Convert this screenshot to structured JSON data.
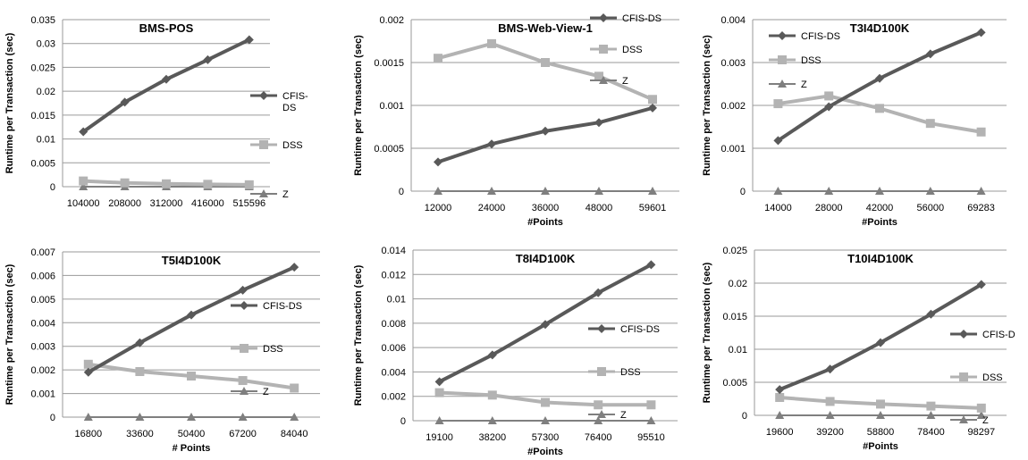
{
  "chart_data": [
    {
      "type": "line",
      "title": "BMS-POS",
      "xlabel": "",
      "ylabel": "Runtime per Transaction (sec)",
      "categories": [
        "104000",
        "208000",
        "312000",
        "416000",
        "515596"
      ],
      "ylim": [
        0,
        0.035
      ],
      "yticks": [
        "0",
        "0.005",
        "0.01",
        "0.015",
        "0.02",
        "0.025",
        "0.03",
        "0.035"
      ],
      "legend_position": "right",
      "series": [
        {
          "name": "CFIS-DS",
          "legend_lines": [
            "CFIS-",
            "DS"
          ],
          "values": [
            0.0115,
            0.0177,
            0.0225,
            0.0266,
            0.0308
          ],
          "color": "#595959",
          "marker": "diamond"
        },
        {
          "name": "DSS",
          "values": [
            0.0012,
            0.0008,
            0.0006,
            0.0005,
            0.0004
          ],
          "color": "#b3b3b3",
          "marker": "square"
        },
        {
          "name": "Z",
          "values": [
            0,
            0,
            0,
            0,
            0
          ],
          "color": "#7f7f7f",
          "marker": "triangle"
        }
      ]
    },
    {
      "type": "line",
      "title": "BMS-Web-View-1",
      "xlabel": "#Points",
      "ylabel": "Runtime per Transaction (sec)",
      "categories": [
        "12000",
        "24000",
        "36000",
        "48000",
        "59601"
      ],
      "ylim": [
        0,
        0.002
      ],
      "yticks": [
        "0",
        "0.0005",
        "0.001",
        "0.0015",
        "0.002"
      ],
      "legend_position": "right",
      "series": [
        {
          "name": "CFIS-DS",
          "values": [
            0.00034,
            0.00055,
            0.0007,
            0.0008,
            0.00097
          ],
          "color": "#595959",
          "marker": "diamond"
        },
        {
          "name": "DSS",
          "values": [
            0.00155,
            0.00172,
            0.0015,
            0.00134,
            0.00107
          ],
          "color": "#b3b3b3",
          "marker": "square"
        },
        {
          "name": "Z",
          "values": [
            0,
            0,
            0,
            0,
            0
          ],
          "color": "#7f7f7f",
          "marker": "triangle"
        }
      ]
    },
    {
      "type": "line",
      "title": "T3I4D100K",
      "xlabel": "#Points",
      "ylabel": "Runtime per Transaction (sec)",
      "categories": [
        "14000",
        "28000",
        "42000",
        "56000",
        "69283"
      ],
      "ylim": [
        0,
        0.004
      ],
      "yticks": [
        "0",
        "0.001",
        "0.002",
        "0.003",
        "0.004"
      ],
      "legend_position": "left",
      "series": [
        {
          "name": "CFIS-DS",
          "values": [
            0.00118,
            0.00197,
            0.00263,
            0.0032,
            0.0037
          ],
          "color": "#595959",
          "marker": "diamond"
        },
        {
          "name": "DSS",
          "values": [
            0.00204,
            0.00222,
            0.00193,
            0.00158,
            0.00138
          ],
          "color": "#b3b3b3",
          "marker": "square"
        },
        {
          "name": "Z",
          "values": [
            0,
            0,
            0,
            0,
            0
          ],
          "color": "#7f7f7f",
          "marker": "triangle"
        }
      ]
    },
    {
      "type": "line",
      "title": "T5I4D100K",
      "xlabel": "# Points",
      "ylabel": "Runtime per Transaction (sec)",
      "categories": [
        "16800",
        "33600",
        "50400",
        "67200",
        "84040"
      ],
      "ylim": [
        0,
        0.007
      ],
      "yticks": [
        "0",
        "0.001",
        "0.002",
        "0.003",
        "0.004",
        "0.005",
        "0.006",
        "0.007"
      ],
      "legend_position": "right",
      "series": [
        {
          "name": "CFIS-DS",
          "values": [
            0.0019,
            0.00315,
            0.00433,
            0.00538,
            0.00635
          ],
          "color": "#595959",
          "marker": "diamond"
        },
        {
          "name": "DSS",
          "values": [
            0.00224,
            0.00193,
            0.00174,
            0.00155,
            0.00123
          ],
          "color": "#b3b3b3",
          "marker": "square"
        },
        {
          "name": "Z",
          "values": [
            0,
            0,
            0,
            0,
            0
          ],
          "color": "#7f7f7f",
          "marker": "triangle"
        }
      ]
    },
    {
      "type": "line",
      "title": "T8I4D100K",
      "xlabel": "#Points",
      "ylabel": "Runtime per Transaction (sec)",
      "categories": [
        "19100",
        "38200",
        "57300",
        "76400",
        "95510"
      ],
      "ylim": [
        0,
        0.014
      ],
      "yticks": [
        "0",
        "0.002",
        "0.004",
        "0.006",
        "0.008",
        "0.01",
        "0.012",
        "0.014"
      ],
      "legend_position": "right",
      "series": [
        {
          "name": "CFIS-DS",
          "values": [
            0.0032,
            0.0054,
            0.0079,
            0.0105,
            0.0128
          ],
          "color": "#595959",
          "marker": "diamond"
        },
        {
          "name": "DSS",
          "values": [
            0.0023,
            0.0021,
            0.0015,
            0.0013,
            0.0013
          ],
          "color": "#b3b3b3",
          "marker": "square"
        },
        {
          "name": "Z",
          "values": [
            0,
            0,
            0,
            0,
            0
          ],
          "color": "#7f7f7f",
          "marker": "triangle"
        }
      ]
    },
    {
      "type": "line",
      "title": "T10I4D100K",
      "xlabel": "#Points",
      "ylabel": "Runtime per Transaction (sec)",
      "categories": [
        "19600",
        "39200",
        "58800",
        "78400",
        "98297"
      ],
      "ylim": [
        0,
        0.025
      ],
      "yticks": [
        "0",
        "0.005",
        "0.01",
        "0.015",
        "0.02",
        "0.025"
      ],
      "legend_position": "right",
      "series": [
        {
          "name": "CFIS-DS",
          "legend_lines": [
            "CFIS-D"
          ],
          "values": [
            0.0039,
            0.007,
            0.011,
            0.0153,
            0.0198
          ],
          "color": "#595959",
          "marker": "diamond"
        },
        {
          "name": "DSS",
          "values": [
            0.0027,
            0.0021,
            0.0017,
            0.0014,
            0.0011
          ],
          "color": "#b3b3b3",
          "marker": "square"
        },
        {
          "name": "Z",
          "values": [
            0,
            0,
            0,
            0,
            0
          ],
          "color": "#7f7f7f",
          "marker": "triangle"
        }
      ]
    }
  ]
}
